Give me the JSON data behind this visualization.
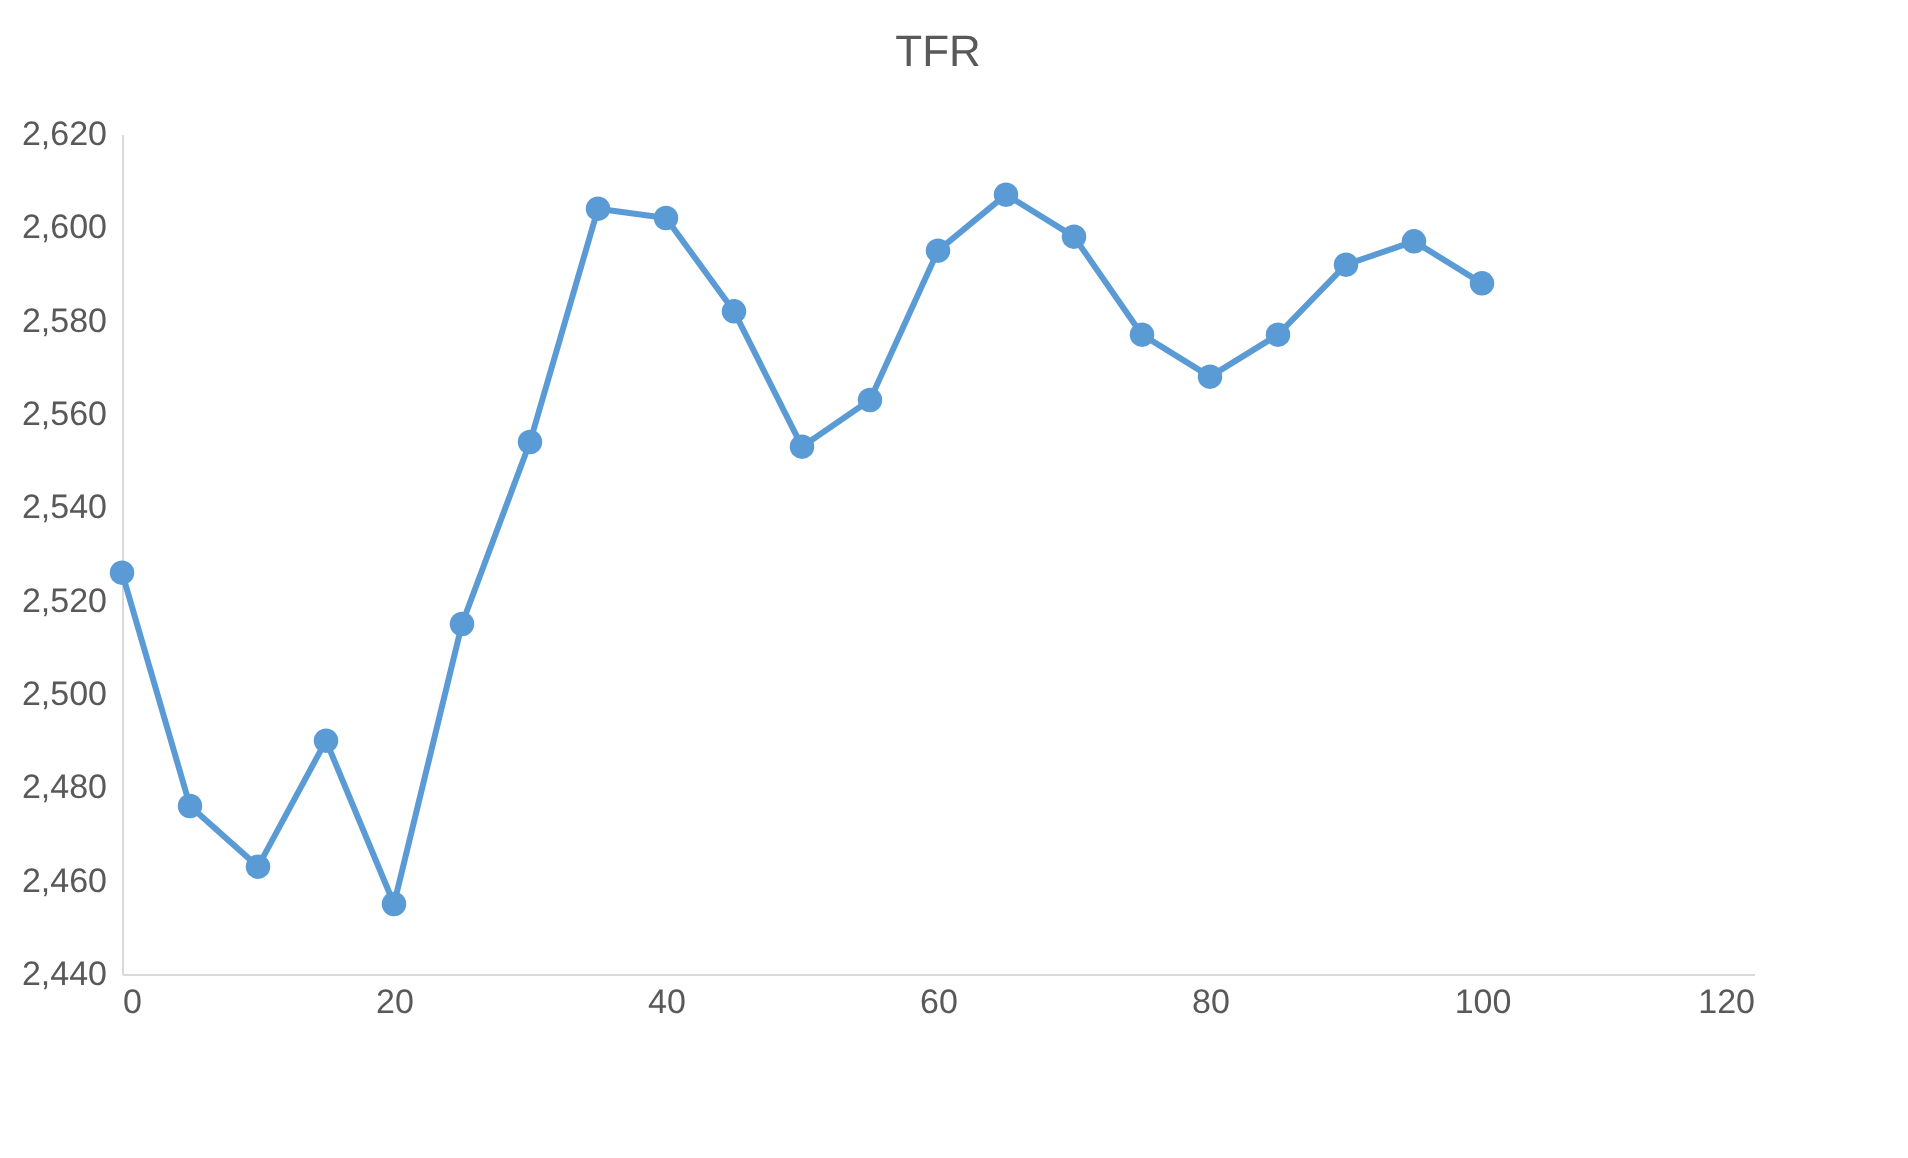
{
  "chart_data": {
    "type": "line",
    "title": "TFR",
    "x": [
      0,
      5,
      10,
      15,
      20,
      25,
      30,
      35,
      40,
      45,
      50,
      55,
      60,
      65,
      70,
      75,
      80,
      85,
      90,
      95,
      100
    ],
    "series": [
      {
        "color": "#5b9bd5",
        "values": [
          2526,
          2476,
          2463,
          2490,
          2455,
          2515,
          2554,
          2604,
          2602,
          2582,
          2553,
          2563,
          2595,
          2607,
          2598,
          2577,
          2568,
          2577,
          2592,
          2597,
          2588
        ]
      }
    ],
    "xlim": [
      0,
      120
    ],
    "xticks": [
      0,
      20,
      40,
      60,
      80,
      100,
      120
    ],
    "ylim": [
      2440,
      2620
    ],
    "yticks": [
      {
        "value": 2440,
        "label": "2,440"
      },
      {
        "value": 2460,
        "label": "2,460"
      },
      {
        "value": 2480,
        "label": "2,480"
      },
      {
        "value": 2500,
        "label": "2,500"
      },
      {
        "value": 2520,
        "label": "2,520"
      },
      {
        "value": 2540,
        "label": "2,540"
      },
      {
        "value": 2560,
        "label": "2,560"
      },
      {
        "value": 2580,
        "label": "2,580"
      },
      {
        "value": 2600,
        "label": "2,600"
      },
      {
        "value": 2620,
        "label": "2,620"
      }
    ],
    "marker": "circle",
    "grid": false
  }
}
